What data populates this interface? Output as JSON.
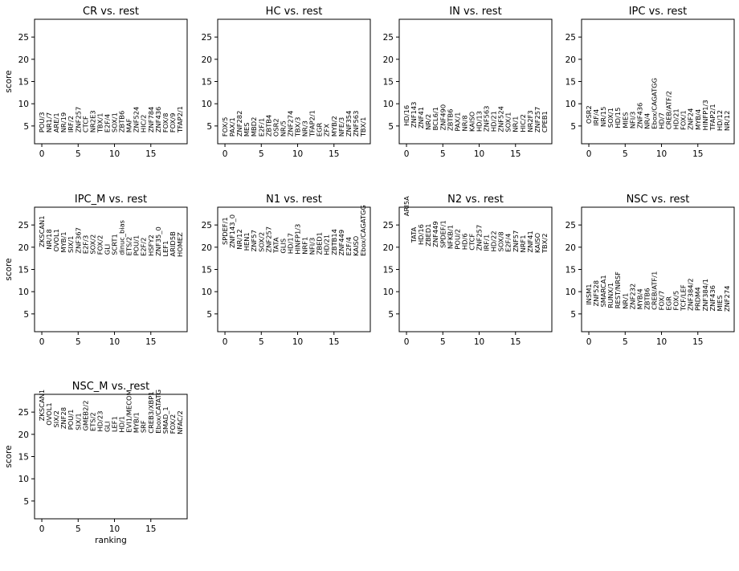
{
  "chart_data": {
    "type": "scatter",
    "xlim": [
      -1,
      20
    ],
    "ylim": [
      1,
      29
    ],
    "xticks": [
      0,
      5,
      10,
      15
    ],
    "yticks": [
      5,
      10,
      15,
      20,
      25
    ],
    "xlabel": "ranking",
    "ylabel": "score",
    "grid": false,
    "panels": [
      {
        "title": "CR vs. rest",
        "genes": [
          "POU/3",
          "NR1/7",
          "ARE/1",
          "NR/19",
          "IRF/2",
          "ZNF257",
          "CTCF",
          "NR2E3",
          "TBX/1",
          "E2F/4",
          "SOX/1",
          "ZBTB6",
          "MAF",
          "ZNF524",
          "HIC/2",
          "ZNF784",
          "ZNF436",
          "FOX/8",
          "FOX/9",
          "TFAP2/1"
        ],
        "scores": [
          3.5,
          3.5,
          3.5,
          3.5,
          3.5,
          3.5,
          3.5,
          3.5,
          3.5,
          3.5,
          3.5,
          3.5,
          3.5,
          3.5,
          3.5,
          3.5,
          3.5,
          3.5,
          3.5,
          3.5
        ]
      },
      {
        "title": "HC vs. rest",
        "genes": [
          "FOX/5",
          "PAX/1",
          "ZNF282",
          "MES",
          "MBD2",
          "E2F/1",
          "ZBTB4",
          "OSR2",
          "NR/5",
          "ZNF274",
          "TBX/3",
          "NR/3",
          "TFAP2/1",
          "EGR",
          "ZFX",
          "MYB/2",
          "NFE/3",
          "ZNF354",
          "ZNF563",
          "TBX/1"
        ],
        "scores": [
          2.6,
          2.6,
          2.6,
          2.6,
          2.6,
          2.6,
          2.6,
          2.6,
          2.6,
          2.6,
          2.6,
          2.6,
          2.6,
          2.6,
          2.6,
          2.6,
          2.6,
          2.6,
          2.6,
          2.6
        ]
      },
      {
        "title": "IN vs. rest",
        "genes": [
          "HD/16",
          "ZNF143",
          "ZNF41",
          "NR/2",
          "BCL6/1",
          "ZNF490",
          "ZBTB6",
          "PAX/1",
          "NR/8",
          "KAISO",
          "HD/13",
          "ZNF563",
          "HD/21",
          "ZNF524",
          "SOX/1",
          "NR/1",
          "HIC/2",
          "NR2F3",
          "ZNF257",
          "CPEB1"
        ],
        "scores": [
          5.0,
          4.6,
          4.4,
          4.1,
          4.0,
          4.0,
          3.9,
          3.8,
          3.8,
          3.7,
          3.7,
          3.7,
          3.7,
          3.6,
          3.6,
          3.6,
          3.6,
          3.6,
          3.5,
          3.5
        ]
      },
      {
        "title": "IPC vs. rest",
        "genes": [
          "OSR2",
          "IRF/4",
          "NR/15",
          "SOX/1",
          "HD/15",
          "MIES",
          "NFI/3",
          "ZNF436",
          "NR/4",
          "Ebox/CAGATGG",
          "HD/7",
          "CREB/ATF/2",
          "HD/21",
          "FOX/1",
          "ZNF24",
          "MYB/4",
          "HINFP1/3",
          "TFAP2/1",
          "HD/12",
          "NR/12"
        ],
        "scores": [
          5.5,
          5.0,
          4.8,
          4.6,
          4.5,
          4.5,
          4.4,
          4.4,
          4.3,
          4.3,
          4.3,
          4.2,
          4.2,
          4.1,
          4.1,
          4.1,
          4.0,
          4.0,
          3.9,
          3.9
        ]
      },
      {
        "title": "IPC_M vs. rest",
        "genes": [
          "ZKSCAN1",
          "NR/18",
          "OVOL1",
          "MYB/1",
          "SIX/1",
          "ZNF367",
          "E2F/3",
          "SOX/2",
          "FOX/2",
          "GLI",
          "SCRT1",
          "dinuc_bias",
          "ETS/2",
          "POU/1",
          "E2F/2",
          "HSFY2",
          "ZNF35_0",
          "LEF1",
          "ARID5B",
          "HOMEZ"
        ],
        "scores": [
          20.0,
          19.5,
          19.0,
          18.8,
          18.7,
          18.6,
          18.5,
          18.4,
          18.3,
          18.3,
          18.2,
          18.2,
          18.1,
          18.1,
          18.0,
          18.0,
          18.0,
          17.9,
          17.9,
          17.8
        ]
      },
      {
        "title": "N1 vs. rest",
        "genes": [
          "SPDEF/1",
          "ZNF143_0",
          "NR/12",
          "HEN1",
          "ZNF57",
          "SOX/2",
          "ZNF257",
          "TATA",
          "GLIS",
          "HD/17",
          "HINFP1/3",
          "NRF1",
          "NFI/3",
          "ZBED1",
          "HD/21",
          "ZBTB14",
          "ZNF449",
          "E2F/4",
          "KAISO",
          "Ebox/CAGATGG"
        ],
        "scores": [
          20.5,
          19.8,
          19.5,
          19.2,
          19.0,
          18.9,
          18.8,
          18.7,
          18.6,
          18.5,
          18.4,
          18.4,
          18.3,
          18.3,
          18.2,
          18.2,
          18.1,
          18.1,
          18.0,
          18.0
        ]
      },
      {
        "title": "N2 vs. rest",
        "genes": [
          "ARI5A",
          "TATA",
          "HD/16",
          "ZBED1",
          "ZNF449",
          "SPDEF/1",
          "NFKB/1",
          "POU/2",
          "HD/6",
          "CTCF",
          "ZNF257",
          "IRF/1",
          "HD/22",
          "SOX/8",
          "E2F/4",
          "ZNF57",
          "NRF1",
          "ZNF41",
          "KAISO",
          "TBX/2"
        ],
        "scores": [
          27.0,
          21.0,
          20.5,
          20.2,
          20.0,
          19.8,
          19.6,
          19.5,
          19.4,
          19.3,
          19.2,
          19.1,
          19.0,
          19.0,
          18.9,
          18.9,
          18.8,
          18.8,
          18.7,
          18.7
        ]
      },
      {
        "title": "NSC vs. rest",
        "genes": [
          "INSM1",
          "ZNF528",
          "SMARCA1",
          "RUNX/1",
          "REST/NRSF",
          "NR/1",
          "ZNF232",
          "MYB/4",
          "ZBTB6",
          "CREB/ATF/1",
          "FOX/7",
          "EGR",
          "FOX/5",
          "TCF/LEF",
          "ZNF384/2",
          "PRDM4",
          "ZNF384/1",
          "ZNF436",
          "MIES",
          "ZNF274"
        ],
        "scores": [
          7.0,
          6.7,
          6.5,
          6.3,
          6.2,
          6.1,
          6.0,
          6.0,
          5.9,
          5.9,
          5.8,
          5.8,
          5.8,
          5.7,
          5.7,
          5.7,
          5.6,
          5.6,
          5.6,
          5.5
        ]
      },
      {
        "title": "NSC_M vs. rest",
        "genes": [
          "ZKSCAN1",
          "OVOL1",
          "SIX/2",
          "ZNF28",
          "POU/1",
          "SIX/1",
          "GMEB2/2",
          "ETS/2",
          "HD/23",
          "GLI",
          "LEF1",
          "HD/1",
          "EVI1/MECOM",
          "MYB/1",
          "SRF",
          "CREB3/XBP1",
          "Ebox/CATATG",
          "SMAD_1",
          "FOX/2",
          "NFAC/2"
        ],
        "scores": [
          23.0,
          22.0,
          21.5,
          21.2,
          21.0,
          20.9,
          20.8,
          20.7,
          20.6,
          20.5,
          20.5,
          20.4,
          20.4,
          20.3,
          20.3,
          20.2,
          20.2,
          20.1,
          20.1,
          20.0
        ]
      }
    ]
  }
}
